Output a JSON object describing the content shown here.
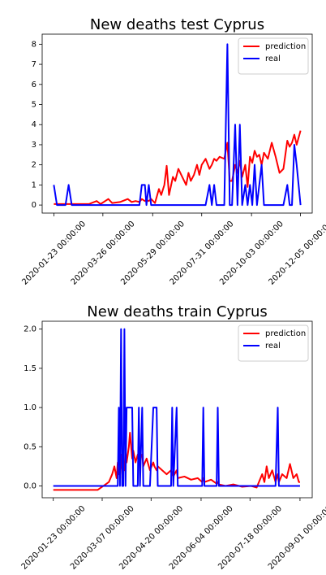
{
  "chart_data": [
    {
      "type": "line",
      "title": "New deaths test Cyprus",
      "legend": "upper right",
      "x": [
        "2020-01-23",
        "2020-01-27",
        "2020-02-07",
        "2020-02-11",
        "2020-02-15",
        "2020-02-27",
        "2020-03-08",
        "2020-03-18",
        "2020-03-23",
        "2020-04-02",
        "2020-04-07",
        "2020-04-17",
        "2020-04-27",
        "2020-05-02",
        "2020-05-07",
        "2020-05-12",
        "2020-05-15",
        "2020-05-19",
        "2020-05-21",
        "2020-05-24",
        "2020-05-27",
        "2020-06-01",
        "2020-06-06",
        "2020-06-09",
        "2020-06-13",
        "2020-06-16",
        "2020-06-19",
        "2020-06-24",
        "2020-06-27",
        "2020-07-01",
        "2020-07-06",
        "2020-07-11",
        "2020-07-14",
        "2020-07-17",
        "2020-07-21",
        "2020-07-25",
        "2020-07-28",
        "2020-07-31",
        "2020-08-05",
        "2020-08-10",
        "2020-08-13",
        "2020-08-16",
        "2020-08-19",
        "2020-08-23",
        "2020-08-29",
        "2020-09-02",
        "2020-09-05",
        "2020-09-08",
        "2020-09-12",
        "2020-09-15",
        "2020-09-18",
        "2020-09-21",
        "2020-09-25",
        "2020-09-28",
        "2020-10-01",
        "2020-10-04",
        "2020-10-07",
        "2020-10-10",
        "2020-10-13",
        "2020-10-16",
        "2020-10-19",
        "2020-10-24",
        "2020-10-29",
        "2020-11-03",
        "2020-11-08",
        "2020-11-13",
        "2020-11-18",
        "2020-11-21",
        "2020-11-24",
        "2020-11-27",
        "2020-11-30",
        "2020-12-05"
      ],
      "series": [
        {
          "name": "prediction",
          "color": "#ff0000",
          "values": [
            0.05,
            0.05,
            0.05,
            0.05,
            0.05,
            0.05,
            0.05,
            0.2,
            0.05,
            0.3,
            0.1,
            0.15,
            0.3,
            0.15,
            0.2,
            0.15,
            0.3,
            0.2,
            0.25,
            0.2,
            0.3,
            0.1,
            0.8,
            0.5,
            1.0,
            1.95,
            0.5,
            1.4,
            1.2,
            1.8,
            1.4,
            1.0,
            1.6,
            1.2,
            1.5,
            2.0,
            1.5,
            2.0,
            2.3,
            1.8,
            2.0,
            2.3,
            2.2,
            2.4,
            2.3,
            3.1,
            1.2,
            1.2,
            2.0,
            1.6,
            2.2,
            1.4,
            2.0,
            0.9,
            2.4,
            2.1,
            2.7,
            2.4,
            2.5,
            2.0,
            2.6,
            2.3,
            3.1,
            2.4,
            1.6,
            1.8,
            3.2,
            2.9,
            3.1,
            3.5,
            3.0,
            3.7
          ]
        },
        {
          "name": "real",
          "color": "#0000ff",
          "values": [
            1,
            0,
            0,
            1,
            0,
            0,
            0,
            0,
            0,
            0,
            0,
            0,
            0,
            0,
            0,
            0,
            1,
            1,
            0,
            1,
            0,
            0,
            0,
            0,
            0,
            0,
            0,
            0,
            0,
            0,
            0,
            0,
            0,
            0,
            0,
            0,
            0,
            0,
            0,
            1,
            0,
            1,
            0,
            0,
            0,
            8,
            0,
            0,
            4,
            0,
            4,
            0,
            1,
            0,
            1,
            0,
            2,
            0,
            1,
            2,
            0,
            0,
            0,
            0,
            0,
            0,
            1,
            0,
            0,
            3,
            2,
            0
          ]
        }
      ],
      "xlim": [
        "2020-01-08",
        "2020-12-20"
      ],
      "xticks": [
        {
          "value": "2020-01-23",
          "label": "2020-01-23 00:00:00"
        },
        {
          "value": "2020-03-26",
          "label": "2020-03-26 00:00:00"
        },
        {
          "value": "2020-05-29",
          "label": "2020-05-29 00:00:00"
        },
        {
          "value": "2020-07-31",
          "label": "2020-07-31 00:00:00"
        },
        {
          "value": "2020-10-03",
          "label": "2020-10-03 00:00:00"
        },
        {
          "value": "2020-12-05",
          "label": "2020-12-05 00:00:00"
        }
      ],
      "ylim": [
        -0.4,
        8.5
      ],
      "yticks": [
        0,
        1,
        2,
        3,
        4,
        5,
        6,
        7,
        8
      ]
    },
    {
      "type": "line",
      "title": "New deaths train Cyprus",
      "legend": "upper right",
      "x": [
        "2020-01-23",
        "2020-03-03",
        "2020-03-08",
        "2020-03-13",
        "2020-03-16",
        "2020-03-18",
        "2020-03-20",
        "2020-03-21",
        "2020-03-22",
        "2020-03-23",
        "2020-03-24",
        "2020-03-25",
        "2020-03-26",
        "2020-03-27",
        "2020-03-28",
        "2020-03-29",
        "2020-03-31",
        "2020-04-01",
        "2020-04-03",
        "2020-04-04",
        "2020-04-06",
        "2020-04-08",
        "2020-04-09",
        "2020-04-10",
        "2020-04-12",
        "2020-04-13",
        "2020-04-16",
        "2020-04-19",
        "2020-04-22",
        "2020-04-23",
        "2020-04-25",
        "2020-04-26",
        "2020-04-30",
        "2020-05-04",
        "2020-05-08",
        "2020-05-09",
        "2020-05-10",
        "2020-05-13",
        "2020-05-14",
        "2020-05-20",
        "2020-05-26",
        "2020-06-01",
        "2020-06-05",
        "2020-06-06",
        "2020-06-07",
        "2020-06-13",
        "2020-06-18",
        "2020-06-19",
        "2020-06-20",
        "2020-06-26",
        "2020-07-03",
        "2020-07-11",
        "2020-07-19",
        "2020-07-24",
        "2020-07-29",
        "2020-07-31",
        "2020-08-02",
        "2020-08-04",
        "2020-08-07",
        "2020-08-10",
        "2020-08-12",
        "2020-08-13",
        "2020-08-16",
        "2020-08-20",
        "2020-08-23",
        "2020-08-26",
        "2020-08-29",
        "2020-08-31",
        "2020-09-01"
      ],
      "series": [
        {
          "name": "prediction",
          "color": "#ff0000",
          "values": [
            -0.05,
            -0.05,
            0.0,
            0.05,
            0.15,
            0.25,
            0.1,
            0.3,
            0.15,
            0.2,
            0.4,
            0.1,
            0.3,
            0.2,
            0.45,
            0.3,
            0.5,
            0.68,
            0.35,
            0.45,
            0.3,
            0.4,
            0.3,
            0.35,
            0.4,
            0.25,
            0.35,
            0.2,
            0.3,
            0.25,
            0.2,
            0.25,
            0.2,
            0.15,
            0.2,
            0.15,
            0.12,
            0.2,
            0.1,
            0.12,
            0.08,
            0.1,
            0.05,
            0.1,
            0.05,
            0.08,
            0.03,
            0.05,
            0.02,
            0.0,
            0.02,
            -0.01,
            0.0,
            -0.02,
            0.15,
            0.05,
            0.25,
            0.1,
            0.2,
            0.05,
            0.15,
            0.05,
            0.15,
            0.1,
            0.28,
            0.1,
            0.15,
            0.05,
            0.05
          ]
        },
        {
          "name": "real",
          "color": "#0000ff",
          "values": [
            0,
            0,
            0,
            0,
            0,
            0,
            0,
            0,
            1,
            0,
            2,
            0,
            0,
            2,
            0,
            1,
            1,
            1,
            1,
            0,
            0,
            0,
            1,
            0,
            1,
            0,
            0,
            0,
            1,
            1,
            1,
            0,
            0,
            0,
            0,
            1,
            0,
            1,
            0,
            0,
            0,
            0,
            0,
            1,
            0,
            0,
            0,
            1,
            0,
            0,
            0,
            0,
            0,
            0,
            0,
            0,
            0,
            0,
            0,
            0,
            1,
            0,
            0,
            0,
            0,
            0,
            0,
            0,
            0
          ]
        }
      ],
      "xlim": [
        "2020-01-13",
        "2020-09-12"
      ],
      "xticks": [
        {
          "value": "2020-01-23",
          "label": "2020-01-23 00:00:00"
        },
        {
          "value": "2020-03-07",
          "label": "2020-03-07 00:00:00"
        },
        {
          "value": "2020-04-20",
          "label": "2020-04-20 00:00:00"
        },
        {
          "value": "2020-06-04",
          "label": "2020-06-04 00:00:00"
        },
        {
          "value": "2020-07-18",
          "label": "2020-07-18 00:00:00"
        },
        {
          "value": "2020-09-01",
          "label": "2020-09-01 00:00:00"
        }
      ],
      "ylim": [
        -0.15,
        2.1
      ],
      "yticks": [
        {
          "value": 0,
          "label": "0.0"
        },
        0.5,
        {
          "value": 1,
          "label": "1.0"
        },
        1.5,
        {
          "value": 2,
          "label": "2.0"
        }
      ]
    }
  ]
}
